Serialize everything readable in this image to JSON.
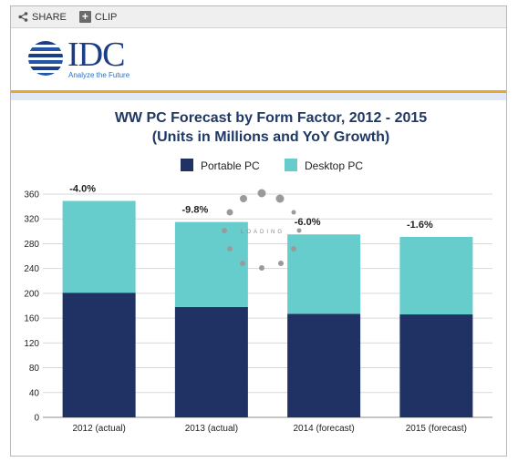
{
  "toolbar": {
    "share_label": "SHARE",
    "clip_label": "CLIP"
  },
  "logo": {
    "word": "IDC",
    "tagline": "Analyze the Future"
  },
  "loading": {
    "text": "LOADING"
  },
  "colors": {
    "portable": "#1f3263",
    "desktop": "#66cdcc",
    "grid": "#d9d9d9",
    "title": "#1f3864"
  },
  "chart_data": {
    "type": "bar",
    "stacked": true,
    "title": "WW PC Forecast by Form Factor, 2012 - 2015",
    "subtitle": "(Units in Millions and YoY Growth)",
    "categories": [
      "2012 (actual)",
      "2013 (actual)",
      "2014 (forecast)",
      "2015 (forecast)"
    ],
    "series": [
      {
        "name": "Portable PC",
        "values": [
          201,
          178,
          167,
          166
        ]
      },
      {
        "name": "Desktop PC",
        "values": [
          148,
          137,
          128,
          125
        ]
      }
    ],
    "yoy_labels": [
      "-4.0%",
      "-9.8%",
      "-6.0%",
      "-1.6%"
    ],
    "ylim": [
      0,
      360
    ],
    "yticks": [
      0,
      40,
      80,
      120,
      160,
      200,
      240,
      280,
      320,
      360
    ],
    "grid": true,
    "legend_position": "top"
  }
}
